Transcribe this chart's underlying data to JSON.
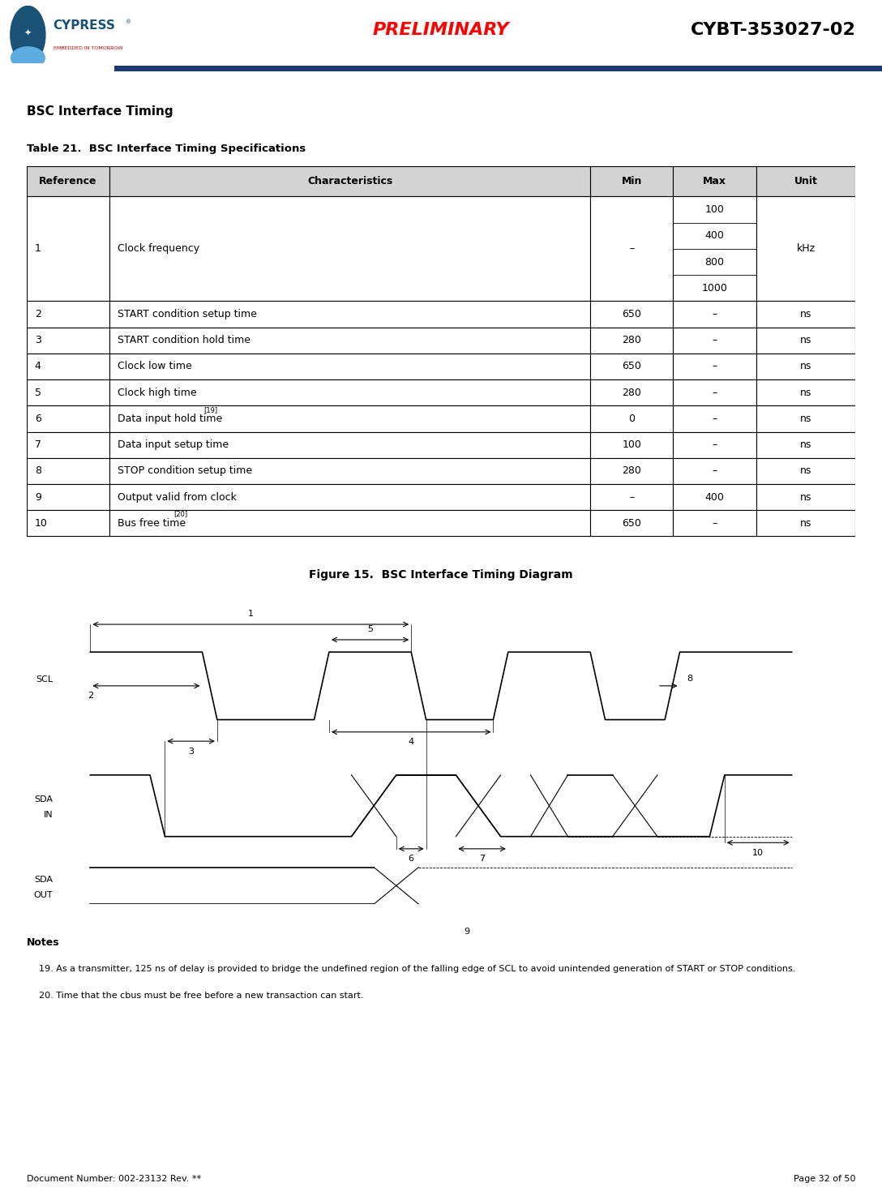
{
  "title_preliminary": "PRELIMINARY",
  "title_product": "CYBT-353027-02",
  "section_title": "BSC Interface Timing",
  "table_title": "Table 21.  BSC Interface Timing Specifications",
  "figure_title": "Figure 15.  BSC Interface Timing Diagram",
  "doc_number": "Document Number: 002-23132 Rev. **",
  "page": "Page 32 of 50",
  "header_cols": [
    "Reference",
    "Characteristics",
    "Min",
    "Max",
    "Unit"
  ],
  "rows": [
    [
      "1",
      "Clock frequency",
      "–",
      "100",
      "kHz"
    ],
    [
      "",
      "",
      "",
      "400",
      ""
    ],
    [
      "",
      "",
      "",
      "800",
      ""
    ],
    [
      "",
      "",
      "",
      "1000",
      ""
    ],
    [
      "2",
      "START condition setup time",
      "650",
      "–",
      "ns"
    ],
    [
      "3",
      "START condition hold time",
      "280",
      "–",
      "ns"
    ],
    [
      "4",
      "Clock low time",
      "650",
      "–",
      "ns"
    ],
    [
      "5",
      "Clock high time",
      "280",
      "–",
      "ns"
    ],
    [
      "6",
      "Data input hold time[19]",
      "0",
      "–",
      "ns"
    ],
    [
      "7",
      "Data input setup time",
      "100",
      "–",
      "ns"
    ],
    [
      "8",
      "STOP condition setup time",
      "280",
      "–",
      "ns"
    ],
    [
      "9",
      "Output valid from clock",
      "–",
      "400",
      "ns"
    ],
    [
      "10",
      "Bus free time[20]",
      "650",
      "–",
      "ns"
    ]
  ],
  "superscripts": {
    "6": "[19]",
    "10": "[20]"
  },
  "notes_title": "Notes",
  "notes": [
    "19. As a transmitter, 125 ns of delay is provided to bridge the undefined region of the falling edge of SCL to avoid unintended generation of START or STOP conditions.",
    "20. Time that the cbus must be free before a new transaction can start."
  ],
  "header_bg": "#d3d3d3",
  "row1_bg": "#ffffff",
  "alt_row_bg": "#ffffff",
  "border_color": "#000000",
  "header_font_size": 9,
  "body_font_size": 9,
  "preliminary_color": "#ff0000",
  "product_color": "#000000",
  "header_line_color": "#1e3a6e"
}
